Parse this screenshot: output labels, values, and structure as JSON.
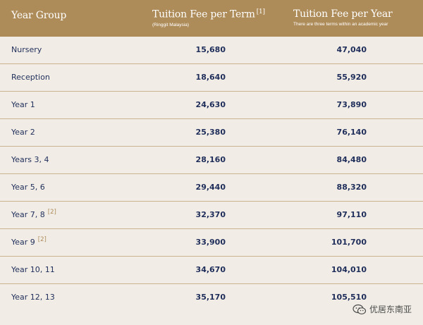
{
  "header": {
    "col1": "Year Group",
    "col2": {
      "title": "Tuition Fee per Term",
      "note": "[1]",
      "sub": "(Ringgit Malaysia)"
    },
    "col3": {
      "title": "Tuition Fee per Year",
      "sub": "There are three terms within an academic year"
    }
  },
  "rows": [
    {
      "group": "Nursery",
      "note": "",
      "term": "15,680",
      "year": "47,040"
    },
    {
      "group": "Reception",
      "note": "",
      "term": "18,640",
      "year": "55,920"
    },
    {
      "group": "Year 1",
      "note": "",
      "term": "24,630",
      "year": "73,890"
    },
    {
      "group": "Year 2",
      "note": "",
      "term": "25,380",
      "year": "76,140"
    },
    {
      "group": "Years 3, 4",
      "note": "",
      "term": "28,160",
      "year": "84,480"
    },
    {
      "group": "Year 5, 6",
      "note": "",
      "term": "29,440",
      "year": "88,320"
    },
    {
      "group": "Year 7, 8",
      "note": "[2]",
      "term": "32,370",
      "year": "97,110"
    },
    {
      "group": "Year 9",
      "note": "[2]",
      "term": "33,900",
      "year": "101,700"
    },
    {
      "group": "Year 10, 11",
      "note": "",
      "term": "34,670",
      "year": "104,010"
    },
    {
      "group": "Year 12, 13",
      "note": "",
      "term": "35,170",
      "year": "105,510"
    }
  ],
  "watermark": {
    "text": "优居东南亚",
    "icon": "wechat-icon"
  },
  "colors": {
    "header": "#ae8c5a",
    "background": "#f1ede6",
    "text": "#1f2d5a",
    "divider": "#c9b48f"
  }
}
